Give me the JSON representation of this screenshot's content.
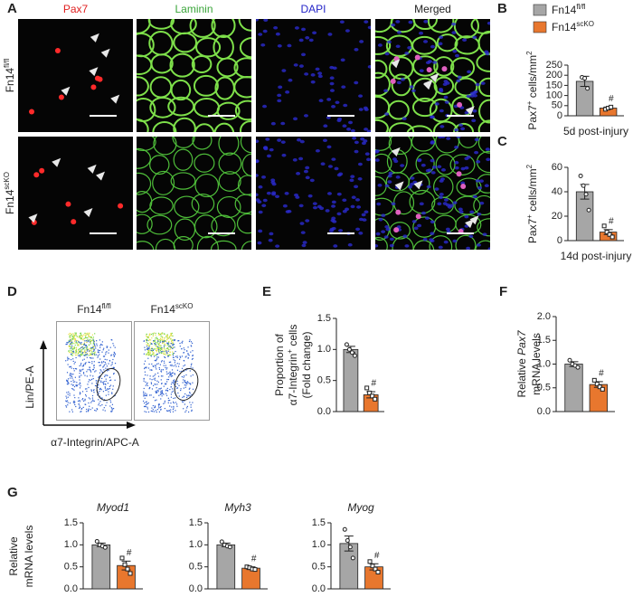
{
  "panel_labels": [
    "A",
    "B",
    "C",
    "D",
    "E",
    "F",
    "G"
  ],
  "legend": [
    {
      "name": [
        {
          "t": "Fn14"
        },
        {
          "t": "fl/fl",
          "sup": true
        }
      ],
      "color": "#a6a6a6"
    },
    {
      "name": [
        {
          "t": "Fn14"
        },
        {
          "t": "scKO",
          "sup": true
        }
      ],
      "color": "#e8772e"
    }
  ],
  "panel_a": {
    "columns": [
      {
        "label": "Pax7",
        "color": "#e02020"
      },
      {
        "label": "Laminin",
        "color": "#3aa53a"
      },
      {
        "label": "DAPI",
        "color": "#2424c8"
      },
      {
        "label": "Merged",
        "color": "#222222"
      }
    ],
    "rows": [
      [
        {
          "t": "Fn14"
        },
        {
          "t": "fl/fl",
          "sup": true
        }
      ],
      [
        {
          "t": "Fn14"
        },
        {
          "t": "scKO",
          "sup": true
        }
      ]
    ]
  },
  "panel_d": {
    "titles": [
      [
        {
          "t": "Fn14"
        },
        {
          "t": "fl/fl",
          "sup": true
        }
      ],
      [
        {
          "t": "Fn14"
        },
        {
          "t": "scKO",
          "sup": true
        }
      ]
    ],
    "ylabel": "Lin/PE-A",
    "xlabel": "α7-Integrin/APC-A"
  },
  "chart_data": [
    {
      "type": "bar",
      "colors": [
        "#a6a6a6",
        "#e8772e"
      ],
      "ylabel": [
        [
          {
            "t": "Pax7"
          },
          {
            "t": "+",
            "sup": true
          },
          {
            "t": " cells/mm"
          },
          {
            "t": "2",
            "sup": true
          }
        ]
      ],
      "xlabel": "5d post-injury",
      "values": [
        170,
        38
      ],
      "errors": [
        25,
        5
      ],
      "points": [
        [
          190,
          185,
          135
        ],
        [
          32,
          38,
          43
        ]
      ],
      "value_annotations": [
        null,
        "#"
      ],
      "ylim": [
        0,
        250
      ],
      "yticks": [
        0,
        50,
        100,
        150,
        200,
        250
      ]
    },
    {
      "type": "bar",
      "colors": [
        "#a6a6a6",
        "#e8772e"
      ],
      "ylabel": [
        [
          {
            "t": "Pax7"
          },
          {
            "t": "+",
            "sup": true
          },
          {
            "t": " cells/mm"
          },
          {
            "t": "2",
            "sup": true
          }
        ]
      ],
      "xlabel": "14d post-injury",
      "values": [
        40,
        7
      ],
      "errors": [
        6,
        2
      ],
      "points": [
        [
          53,
          45,
          38,
          25
        ],
        [
          12,
          7,
          5,
          3
        ]
      ],
      "value_annotations": [
        null,
        "#"
      ],
      "ylim": [
        0,
        60
      ],
      "yticks": [
        0,
        20,
        40,
        60
      ]
    },
    {
      "type": "bar",
      "colors": [
        "#a6a6a6",
        "#e8772e"
      ],
      "ylabel": [
        [
          {
            "t": "Proportion of"
          }
        ],
        [
          {
            "t": "α7-Integrin"
          },
          {
            "t": "+",
            "sup": true
          },
          {
            "t": " cells"
          }
        ],
        [
          {
            "t": "(Fold change)"
          }
        ]
      ],
      "values": [
        1.0,
        0.27
      ],
      "errors": [
        0.05,
        0.05
      ],
      "points": [
        [
          1.08,
          1.0,
          0.95,
          0.9
        ],
        [
          0.38,
          0.3,
          0.25,
          0.2
        ]
      ],
      "value_annotations": [
        null,
        "#"
      ],
      "ylim": [
        0,
        1.5
      ],
      "yticks": [
        {
          "value": 0,
          "label": "0.0"
        },
        0.5,
        {
          "value": 1,
          "label": "1.0"
        },
        1.5
      ]
    },
    {
      "type": "bar",
      "colors": [
        "#a6a6a6",
        "#e8772e"
      ],
      "ylabel": [
        [
          {
            "t": "Relative "
          },
          {
            "t": "Pax7",
            "italic": true
          }
        ],
        [
          {
            "t": "mRNA levels"
          }
        ]
      ],
      "values": [
        1.0,
        0.57
      ],
      "errors": [
        0.05,
        0.06
      ],
      "points": [
        [
          1.08,
          1.0,
          0.97,
          0.93
        ],
        [
          0.66,
          0.58,
          0.52,
          0.47
        ]
      ],
      "value_annotations": [
        null,
        "#"
      ],
      "ylim": [
        0,
        2
      ],
      "yticks": [
        {
          "value": 0,
          "label": "0.0"
        },
        0.5,
        {
          "value": 1,
          "label": "1.0"
        },
        1.5,
        {
          "value": 2,
          "label": "2.0"
        }
      ]
    },
    {
      "type": "bar",
      "colors": [
        "#a6a6a6",
        "#e8772e"
      ],
      "title": "Myod1",
      "ylabel": [
        [
          {
            "t": "Relative"
          }
        ],
        [
          {
            "t": "mRNA levels"
          }
        ]
      ],
      "values": [
        1.0,
        0.53
      ],
      "errors": [
        0.04,
        0.1
      ],
      "points": [
        [
          1.08,
          1.0,
          0.97,
          0.94
        ],
        [
          0.7,
          0.55,
          0.45,
          0.35
        ]
      ],
      "value_annotations": [
        null,
        "#"
      ],
      "ylim": [
        0,
        1.5
      ],
      "yticks": [
        {
          "value": 0,
          "label": "0.0"
        },
        0.5,
        {
          "value": 1,
          "label": "1.0"
        },
        1.5
      ]
    },
    {
      "type": "bar",
      "colors": [
        "#a6a6a6",
        "#e8772e"
      ],
      "title": "Myh3",
      "values": [
        1.0,
        0.47
      ],
      "errors": [
        0.04,
        0.03
      ],
      "points": [
        [
          1.07,
          1.0,
          0.97,
          0.95
        ],
        [
          0.5,
          0.48,
          0.45,
          0.44
        ]
      ],
      "value_annotations": [
        null,
        "#"
      ],
      "ylim": [
        0,
        1.5
      ],
      "yticks": [
        {
          "value": 0,
          "label": "0.0"
        },
        0.5,
        {
          "value": 1,
          "label": "1.0"
        },
        1.5
      ]
    },
    {
      "type": "bar",
      "colors": [
        "#a6a6a6",
        "#e8772e"
      ],
      "title": "Myog",
      "values": [
        1.03,
        0.5
      ],
      "errors": [
        0.17,
        0.07
      ],
      "points": [
        [
          1.35,
          1.1,
          0.95,
          0.7
        ],
        [
          0.62,
          0.52,
          0.45,
          0.38
        ]
      ],
      "value_annotations": [
        null,
        "#"
      ],
      "ylim": [
        0,
        1.5
      ],
      "yticks": [
        {
          "value": 0,
          "label": "0.0"
        },
        0.5,
        {
          "value": 1,
          "label": "1.0"
        },
        1.5
      ]
    }
  ]
}
